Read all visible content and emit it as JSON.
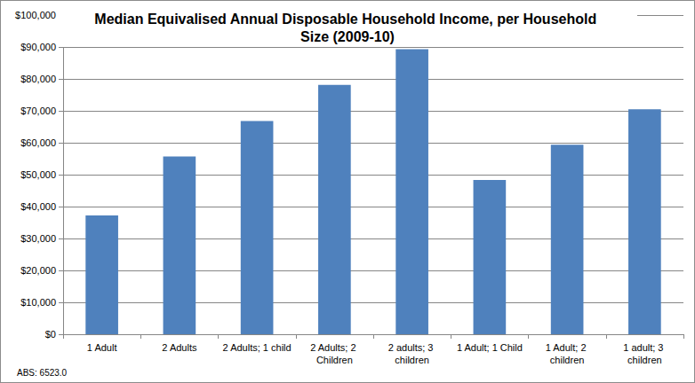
{
  "chart_data": {
    "type": "bar",
    "title": "Median Equivalised Annual Disposable Household Income, per Household Size (2009-10)",
    "categories": [
      "1 Adult",
      "2 Adults",
      "2 Adults; 1 child",
      "2 Adults; 2 Children",
      "2 adults; 3 children",
      "1 Adult; 1 Child",
      "1 Adult; 2 children",
      "1 adult; 3 children"
    ],
    "values": [
      37200,
      55700,
      66800,
      78100,
      89300,
      48300,
      59400,
      70500
    ],
    "color": "#4f81bd",
    "ylim": [
      0,
      100000
    ],
    "yticks": [
      {
        "value": 0,
        "label": "$0"
      },
      {
        "value": 10000,
        "label": "$10,000"
      },
      {
        "value": 20000,
        "label": "$20,000"
      },
      {
        "value": 30000,
        "label": "$30,000"
      },
      {
        "value": 40000,
        "label": "$40,000"
      },
      {
        "value": 50000,
        "label": "$50,000"
      },
      {
        "value": 60000,
        "label": "$60,000"
      },
      {
        "value": 70000,
        "label": "$70,000"
      },
      {
        "value": 80000,
        "label": "$80,000"
      },
      {
        "value": 90000,
        "label": "$90,000"
      },
      {
        "value": 100000,
        "label": "$100,000"
      }
    ],
    "grid": true,
    "annotations": [
      "ABS: 6523.0"
    ]
  }
}
